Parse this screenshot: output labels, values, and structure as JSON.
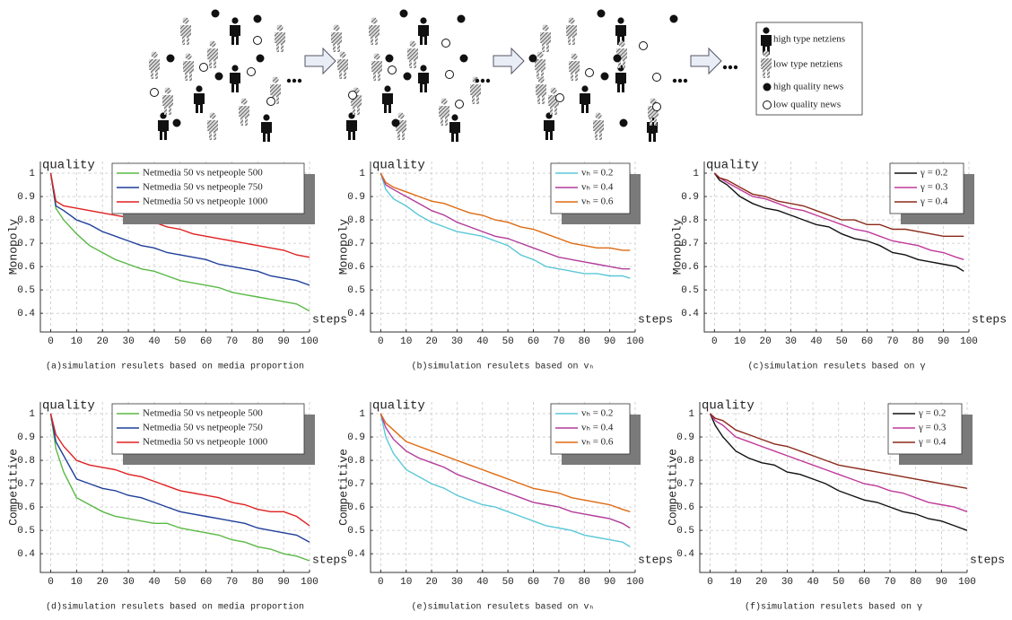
{
  "diagram": {
    "legend": [
      "high type netziens",
      "low type netziens",
      "high quality news",
      "low quality news"
    ]
  },
  "chart_data": [
    {
      "type": "line",
      "ylabel_top": "quality",
      "ylabel": "Monopoly",
      "xlabel": "steps",
      "caption": "(a)simulation resulets based on media proportion",
      "x": [
        0,
        2,
        5,
        10,
        15,
        20,
        25,
        30,
        35,
        40,
        45,
        50,
        55,
        60,
        65,
        70,
        75,
        80,
        85,
        90,
        95,
        100
      ],
      "xlim": [
        -4,
        100
      ],
      "ylim": [
        0.32,
        1.05
      ],
      "xticks": [
        0,
        10,
        20,
        30,
        40,
        50,
        60,
        70,
        80,
        90,
        100
      ],
      "yticks": [
        0.4,
        0.5,
        0.6,
        0.7,
        0.8,
        0.9,
        1
      ],
      "grid": true,
      "legend": "upper right",
      "series": [
        {
          "name": "Netmedia 50 vs netpeople 500",
          "color": "#5ab946",
          "values": [
            1,
            0.85,
            0.8,
            0.74,
            0.69,
            0.66,
            0.63,
            0.61,
            0.59,
            0.58,
            0.56,
            0.54,
            0.53,
            0.52,
            0.51,
            0.49,
            0.48,
            0.47,
            0.46,
            0.45,
            0.44,
            0.41
          ]
        },
        {
          "name": "Netmedia 50 vs netpeople 750",
          "color": "#1f3f9a",
          "values": [
            1,
            0.86,
            0.84,
            0.8,
            0.78,
            0.75,
            0.73,
            0.71,
            0.69,
            0.68,
            0.66,
            0.65,
            0.64,
            0.63,
            0.61,
            0.6,
            0.59,
            0.58,
            0.56,
            0.55,
            0.54,
            0.52
          ]
        },
        {
          "name": "Netmedia 50 vs netpeople 1000",
          "color": "#e02020",
          "values": [
            1,
            0.88,
            0.86,
            0.85,
            0.84,
            0.83,
            0.82,
            0.81,
            0.8,
            0.79,
            0.77,
            0.76,
            0.74,
            0.73,
            0.72,
            0.71,
            0.7,
            0.69,
            0.68,
            0.67,
            0.65,
            0.64
          ]
        }
      ]
    },
    {
      "type": "line",
      "ylabel_top": "quality",
      "ylabel": "Monopoly",
      "xlabel": "steps",
      "caption": "(b)simulation resulets based on vₕ",
      "x": [
        0,
        2,
        5,
        10,
        15,
        20,
        25,
        30,
        35,
        40,
        45,
        50,
        55,
        60,
        65,
        70,
        75,
        80,
        85,
        90,
        95,
        98
      ],
      "xlim": [
        -4,
        100
      ],
      "ylim": [
        0.32,
        1.05
      ],
      "xticks": [
        0,
        10,
        20,
        30,
        40,
        50,
        60,
        70,
        80,
        90,
        100
      ],
      "yticks": [
        0.4,
        0.5,
        0.6,
        0.7,
        0.8,
        0.9,
        1
      ],
      "grid": true,
      "legend": "upper right",
      "series": [
        {
          "name": "vₕ = 0.2",
          "color": "#5bc8d8",
          "values": [
            1,
            0.93,
            0.89,
            0.86,
            0.82,
            0.79,
            0.77,
            0.75,
            0.74,
            0.73,
            0.71,
            0.69,
            0.65,
            0.63,
            0.6,
            0.59,
            0.58,
            0.57,
            0.57,
            0.56,
            0.56,
            0.55
          ]
        },
        {
          "name": "vₕ = 0.4",
          "color": "#b23c9a",
          "values": [
            1,
            0.95,
            0.93,
            0.9,
            0.87,
            0.84,
            0.82,
            0.79,
            0.77,
            0.75,
            0.73,
            0.72,
            0.7,
            0.68,
            0.66,
            0.64,
            0.63,
            0.62,
            0.61,
            0.6,
            0.59,
            0.59
          ]
        },
        {
          "name": "vₕ = 0.6",
          "color": "#e06a10",
          "values": [
            1,
            0.96,
            0.94,
            0.92,
            0.9,
            0.88,
            0.87,
            0.85,
            0.83,
            0.82,
            0.8,
            0.79,
            0.77,
            0.76,
            0.74,
            0.72,
            0.7,
            0.69,
            0.68,
            0.68,
            0.67,
            0.67
          ]
        }
      ]
    },
    {
      "type": "line",
      "ylabel_top": "quality",
      "ylabel": "Monopoly",
      "xlabel": "steps",
      "caption": "(c)simulation resulets based on γ",
      "x": [
        0,
        2,
        5,
        10,
        15,
        20,
        25,
        30,
        35,
        40,
        45,
        50,
        55,
        60,
        65,
        70,
        75,
        80,
        85,
        90,
        95,
        98
      ],
      "xlim": [
        -4,
        100
      ],
      "ylim": [
        0.32,
        1.05
      ],
      "xticks": [
        0,
        10,
        20,
        30,
        40,
        50,
        60,
        70,
        80,
        90,
        100
      ],
      "yticks": [
        0.4,
        0.5,
        0.6,
        0.7,
        0.8,
        0.9,
        1
      ],
      "grid": true,
      "legend": "upper right",
      "series": [
        {
          "name": "γ = 0.2",
          "color": "#111111",
          "values": [
            1,
            0.97,
            0.95,
            0.9,
            0.87,
            0.85,
            0.84,
            0.82,
            0.8,
            0.78,
            0.77,
            0.74,
            0.72,
            0.71,
            0.69,
            0.66,
            0.65,
            0.63,
            0.62,
            0.61,
            0.6,
            0.58
          ]
        },
        {
          "name": "γ = 0.3",
          "color": "#c03a9a",
          "values": [
            1,
            0.98,
            0.96,
            0.93,
            0.9,
            0.89,
            0.87,
            0.85,
            0.84,
            0.82,
            0.8,
            0.78,
            0.76,
            0.75,
            0.73,
            0.71,
            0.7,
            0.69,
            0.67,
            0.66,
            0.64,
            0.63
          ]
        },
        {
          "name": "γ = 0.4",
          "color": "#8b2a1a",
          "values": [
            1,
            0.98,
            0.97,
            0.94,
            0.91,
            0.9,
            0.88,
            0.87,
            0.86,
            0.84,
            0.82,
            0.8,
            0.8,
            0.78,
            0.78,
            0.76,
            0.76,
            0.75,
            0.74,
            0.73,
            0.73,
            0.73
          ]
        }
      ]
    },
    {
      "type": "line",
      "ylabel_top": "quality",
      "ylabel": "Competitive",
      "xlabel": "steps",
      "caption": "(d)simulation resulets based on media proportion",
      "x": [
        0,
        2,
        5,
        10,
        15,
        20,
        25,
        30,
        35,
        40,
        45,
        50,
        55,
        60,
        65,
        70,
        75,
        80,
        85,
        90,
        95,
        100
      ],
      "xlim": [
        -4,
        100
      ],
      "ylim": [
        0.32,
        1.05
      ],
      "xticks": [
        0,
        10,
        20,
        30,
        40,
        50,
        60,
        70,
        80,
        90,
        100
      ],
      "yticks": [
        0.4,
        0.5,
        0.6,
        0.7,
        0.8,
        0.9,
        1
      ],
      "grid": true,
      "legend": "upper right",
      "series": [
        {
          "name": "Netmedia 50 vs netpeople 500",
          "color": "#5ab946",
          "values": [
            1,
            0.85,
            0.75,
            0.64,
            0.61,
            0.58,
            0.56,
            0.55,
            0.54,
            0.53,
            0.53,
            0.51,
            0.5,
            0.49,
            0.48,
            0.46,
            0.45,
            0.43,
            0.42,
            0.4,
            0.39,
            0.37
          ]
        },
        {
          "name": "Netmedia 50 vs netpeople 750",
          "color": "#1f3f9a",
          "values": [
            1,
            0.88,
            0.82,
            0.72,
            0.7,
            0.68,
            0.67,
            0.65,
            0.64,
            0.62,
            0.6,
            0.58,
            0.57,
            0.56,
            0.55,
            0.54,
            0.53,
            0.51,
            0.5,
            0.49,
            0.48,
            0.45
          ]
        },
        {
          "name": "Netmedia 50 vs netpeople 1000",
          "color": "#e02020",
          "values": [
            1,
            0.91,
            0.86,
            0.8,
            0.78,
            0.77,
            0.76,
            0.74,
            0.73,
            0.71,
            0.69,
            0.67,
            0.66,
            0.65,
            0.64,
            0.62,
            0.61,
            0.59,
            0.58,
            0.58,
            0.56,
            0.52
          ]
        }
      ]
    },
    {
      "type": "line",
      "ylabel_top": "quality",
      "ylabel": "Competitive",
      "xlabel": "steps",
      "caption": "(e)simulation resulets based on vₕ",
      "x": [
        0,
        2,
        5,
        10,
        15,
        20,
        25,
        30,
        35,
        40,
        45,
        50,
        55,
        60,
        65,
        70,
        75,
        80,
        85,
        90,
        95,
        98
      ],
      "xlim": [
        -4,
        100
      ],
      "ylim": [
        0.32,
        1.05
      ],
      "xticks": [
        0,
        10,
        20,
        30,
        40,
        50,
        60,
        70,
        80,
        90,
        100
      ],
      "yticks": [
        0.4,
        0.5,
        0.6,
        0.7,
        0.8,
        0.9,
        1
      ],
      "grid": true,
      "legend": "upper right",
      "series": [
        {
          "name": "vₕ = 0.2",
          "color": "#5bc8d8",
          "values": [
            1,
            0.9,
            0.83,
            0.76,
            0.73,
            0.7,
            0.68,
            0.65,
            0.63,
            0.61,
            0.6,
            0.58,
            0.56,
            0.54,
            0.52,
            0.51,
            0.5,
            0.48,
            0.47,
            0.46,
            0.45,
            0.43
          ]
        },
        {
          "name": "vₕ = 0.4",
          "color": "#b23c9a",
          "values": [
            1,
            0.94,
            0.89,
            0.84,
            0.81,
            0.79,
            0.77,
            0.74,
            0.72,
            0.7,
            0.68,
            0.66,
            0.64,
            0.62,
            0.61,
            0.6,
            0.58,
            0.57,
            0.56,
            0.55,
            0.53,
            0.51
          ]
        },
        {
          "name": "vₕ = 0.6",
          "color": "#e06a10",
          "values": [
            1,
            0.96,
            0.93,
            0.88,
            0.86,
            0.84,
            0.82,
            0.8,
            0.78,
            0.76,
            0.74,
            0.72,
            0.7,
            0.68,
            0.67,
            0.66,
            0.64,
            0.63,
            0.62,
            0.61,
            0.59,
            0.58
          ]
        }
      ]
    },
    {
      "type": "line",
      "ylabel_top": "quality",
      "ylabel": "Competitive",
      "xlabel": "steps",
      "caption": "(f)simulation resulets based on γ",
      "x": [
        0,
        2,
        5,
        10,
        15,
        20,
        25,
        30,
        35,
        40,
        45,
        50,
        55,
        60,
        65,
        70,
        75,
        80,
        85,
        90,
        95,
        100
      ],
      "xlim": [
        -4,
        100
      ],
      "ylim": [
        0.32,
        1.05
      ],
      "xticks": [
        0,
        10,
        20,
        30,
        40,
        50,
        60,
        70,
        80,
        90,
        100
      ],
      "yticks": [
        0.4,
        0.5,
        0.6,
        0.7,
        0.8,
        0.9,
        1
      ],
      "grid": true,
      "legend": "upper right",
      "series": [
        {
          "name": "γ = 0.2",
          "color": "#111111",
          "values": [
            1,
            0.95,
            0.9,
            0.84,
            0.81,
            0.79,
            0.78,
            0.75,
            0.74,
            0.72,
            0.7,
            0.67,
            0.65,
            0.63,
            0.62,
            0.6,
            0.58,
            0.57,
            0.55,
            0.54,
            0.52,
            0.5
          ]
        },
        {
          "name": "γ = 0.3",
          "color": "#c03a9a",
          "values": [
            1,
            0.97,
            0.95,
            0.9,
            0.88,
            0.86,
            0.84,
            0.82,
            0.8,
            0.78,
            0.76,
            0.74,
            0.72,
            0.7,
            0.69,
            0.67,
            0.66,
            0.64,
            0.62,
            0.61,
            0.6,
            0.58
          ]
        },
        {
          "name": "γ = 0.4",
          "color": "#8b2a1a",
          "values": [
            1,
            0.98,
            0.97,
            0.93,
            0.91,
            0.89,
            0.87,
            0.86,
            0.84,
            0.82,
            0.8,
            0.78,
            0.77,
            0.76,
            0.75,
            0.74,
            0.73,
            0.72,
            0.71,
            0.7,
            0.69,
            0.68
          ]
        }
      ]
    }
  ]
}
